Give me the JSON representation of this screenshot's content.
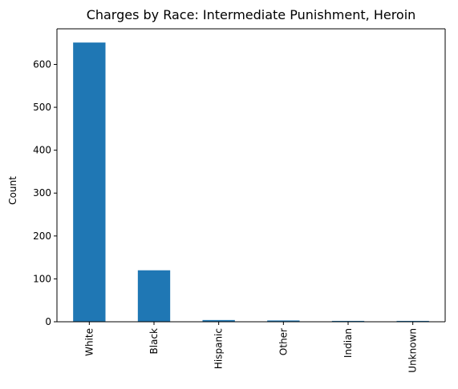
{
  "chart_data": {
    "type": "bar",
    "title": "Charges by Race: Intermediate Punishment, Heroin",
    "xlabel": "",
    "ylabel": "Count",
    "categories": [
      "White",
      "Black",
      "Hispanic",
      "Other",
      "Indian",
      "Unknown"
    ],
    "values": [
      651,
      120,
      4,
      3,
      2,
      2
    ],
    "ylim": [
      0,
      683
    ],
    "yticks": [
      0,
      100,
      200,
      300,
      400,
      500,
      600
    ],
    "grid": false,
    "legend": "none",
    "colors": {
      "bar": "#1f77b4",
      "axis": "#000000",
      "background": "#ffffff"
    }
  }
}
